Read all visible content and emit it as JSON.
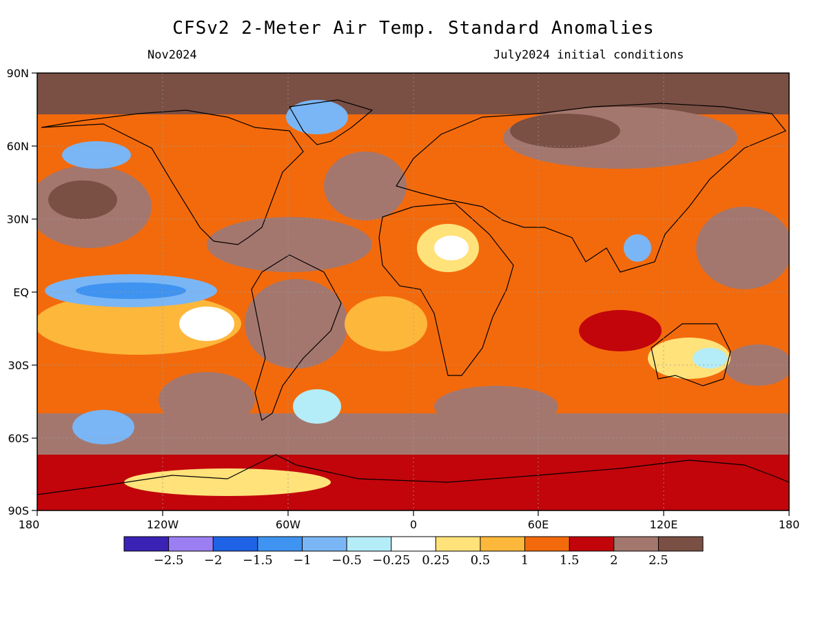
{
  "header": {
    "title": "CFSv2 2-Meter Air Temp. Standard Anomalies",
    "left_label": "Nov2024",
    "right_label": "July2024 initial conditions"
  },
  "axes": {
    "lat_labels": [
      "90N",
      "60N",
      "30N",
      "EQ",
      "30S",
      "60S",
      "90S"
    ],
    "lon_labels": [
      "180",
      "120W",
      "60W",
      "0",
      "60E",
      "120E",
      "180"
    ]
  },
  "colorbar": {
    "colors": [
      "#3a22b5",
      "#9b7ff2",
      "#1e63e6",
      "#3f93f1",
      "#7ab6f5",
      "#b4ecf7",
      "#ffffff",
      "#ffe27a",
      "#fdb73b",
      "#f36a0c",
      "#c1050b",
      "#a4776e",
      "#7a4f44"
    ],
    "labels": [
      "−2.5",
      "−2",
      "−1.5",
      "−1",
      "−0.5",
      "−0.25",
      "0.25",
      "0.5",
      "1",
      "1.5",
      "2",
      "2.5"
    ]
  }
}
